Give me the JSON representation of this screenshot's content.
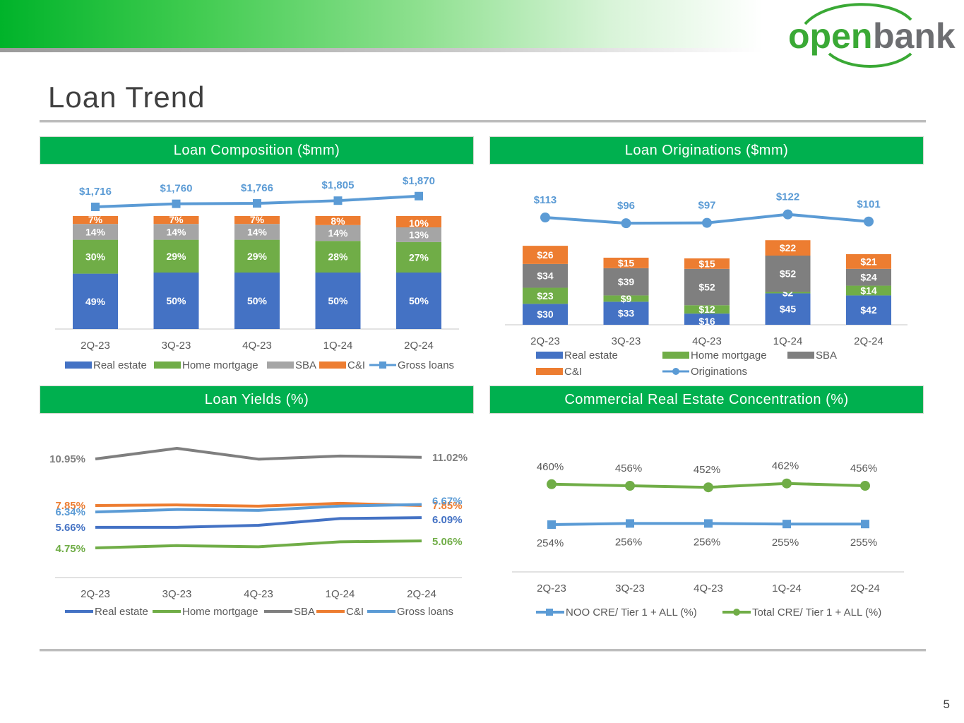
{
  "page": {
    "title": "Loan Trend",
    "slide_number": "5",
    "logo": {
      "text_open": "open",
      "text_bank": "bank"
    }
  },
  "colors": {
    "real_estate": "#4472c4",
    "home_mortgage": "#70ad47",
    "sba_light": "#a5a5a5",
    "sba_dark": "#7f7f7f",
    "ci": "#ed7d31",
    "gross": "#5b9bd5",
    "header_green": "#00b04f",
    "axis_text": "#595959"
  },
  "panels": {
    "composition": {
      "title": "Loan Composition ($mm)"
    },
    "originations": {
      "title": "Loan Originations ($mm)"
    },
    "yields": {
      "title": "Loan Yields (%)"
    },
    "cre": {
      "title": "Commercial Real Estate Concentration (%)"
    }
  },
  "chart_data": [
    {
      "id": "composition",
      "type": "bar",
      "stacked": true,
      "title": "Loan Composition ($mm)",
      "categories": [
        "2Q-23",
        "3Q-23",
        "4Q-23",
        "1Q-24",
        "2Q-24"
      ],
      "series": [
        {
          "name": "Real estate",
          "values": [
            49,
            50,
            50,
            50,
            50
          ],
          "labels": [
            "49%",
            "50%",
            "50%",
            "50%",
            "50%"
          ]
        },
        {
          "name": "Home mortgage",
          "values": [
            30,
            29,
            29,
            28,
            27
          ],
          "labels": [
            "30%",
            "29%",
            "29%",
            "28%",
            "27%"
          ]
        },
        {
          "name": "SBA",
          "values": [
            14,
            14,
            14,
            14,
            13
          ],
          "labels": [
            "14%",
            "14%",
            "14%",
            "14%",
            "13%"
          ]
        },
        {
          "name": "C&I",
          "values": [
            7,
            7,
            7,
            8,
            10
          ],
          "labels": [
            "7%",
            "7%",
            "7%",
            "8%",
            "10%"
          ]
        }
      ],
      "line": {
        "name": "Gross loans",
        "values": [
          1716,
          1760,
          1766,
          1805,
          1870
        ],
        "labels": [
          "$1,716",
          "$1,760",
          "$1,766",
          "$1,805",
          "$1,870"
        ]
      },
      "legend": [
        "Real estate",
        "Home mortgage",
        "SBA",
        "C&I",
        "Gross loans"
      ]
    },
    {
      "id": "originations",
      "type": "bar",
      "stacked": true,
      "title": "Loan Originations ($mm)",
      "categories": [
        "2Q-23",
        "3Q-23",
        "4Q-23",
        "1Q-24",
        "2Q-24"
      ],
      "series": [
        {
          "name": "Real estate",
          "values": [
            30,
            33,
            16,
            45,
            42
          ],
          "labels": [
            "$30",
            "$33",
            "$16",
            "$45",
            "$42"
          ]
        },
        {
          "name": "Home mortgage",
          "values": [
            23,
            9,
            12,
            2,
            14
          ],
          "labels": [
            "$23",
            "$9",
            "$12",
            "$2",
            "$14"
          ]
        },
        {
          "name": "SBA",
          "values": [
            34,
            39,
            52,
            52,
            24
          ],
          "labels": [
            "$34",
            "$39",
            "$52",
            "$52",
            "$24"
          ]
        },
        {
          "name": "C&I",
          "values": [
            26,
            15,
            15,
            22,
            21
          ],
          "labels": [
            "$26",
            "$15",
            "$15",
            "$22",
            "$21"
          ]
        }
      ],
      "line": {
        "name": "Originations",
        "values": [
          113,
          96,
          97,
          122,
          101
        ],
        "labels": [
          "$113",
          "$96",
          "$97",
          "$122",
          "$101"
        ]
      },
      "legend": [
        "Real estate",
        "Home mortgage",
        "SBA",
        "C&I",
        "Originations"
      ]
    },
    {
      "id": "yields",
      "type": "line",
      "title": "Loan Yields (%)",
      "categories": [
        "2Q-23",
        "3Q-23",
        "4Q-23",
        "1Q-24",
        "2Q-24"
      ],
      "series": [
        {
          "name": "Real estate",
          "values": [
            5.66,
            5.66,
            5.75,
            6.05,
            6.09
          ],
          "start_label": "5.66%",
          "end_label": "6.09%"
        },
        {
          "name": "Home mortgage",
          "values": [
            4.75,
            4.85,
            4.8,
            5.02,
            5.06
          ],
          "start_label": "4.75%",
          "end_label": "5.06%"
        },
        {
          "name": "SBA",
          "values": [
            10.95,
            11.42,
            10.94,
            11.08,
            11.02
          ],
          "start_label": "10.95%",
          "end_label": "11.02%"
        },
        {
          "name": "C&I",
          "values": [
            7.85,
            7.88,
            7.82,
            7.96,
            7.85
          ],
          "start_label": "7.85%",
          "end_label": "7.85%"
        },
        {
          "name": "Gross loans",
          "values": [
            6.34,
            6.45,
            6.41,
            6.6,
            6.67
          ],
          "start_label": "6.34%",
          "end_label": "6.67%"
        }
      ],
      "legend": [
        "Real estate",
        "Home mortgage",
        "SBA",
        "C&I",
        "Gross loans"
      ]
    },
    {
      "id": "cre",
      "type": "line",
      "title": "Commercial Real Estate Concentration (%)",
      "categories": [
        "2Q-23",
        "3Q-23",
        "4Q-23",
        "1Q-24",
        "2Q-24"
      ],
      "series": [
        {
          "name": "NOO CRE/ Tier 1 + ALL (%)",
          "values": [
            254,
            256,
            256,
            255,
            255
          ],
          "labels": [
            "254%",
            "256%",
            "256%",
            "255%",
            "255%"
          ]
        },
        {
          "name": "Total CRE/ Tier 1 + ALL (%)",
          "values": [
            460,
            456,
            452,
            462,
            456
          ],
          "labels": [
            "460%",
            "456%",
            "452%",
            "462%",
            "456%"
          ]
        }
      ],
      "legend": [
        "NOO CRE/ Tier 1 + ALL (%)",
        "Total CRE/ Tier 1 + ALL (%)"
      ]
    }
  ]
}
